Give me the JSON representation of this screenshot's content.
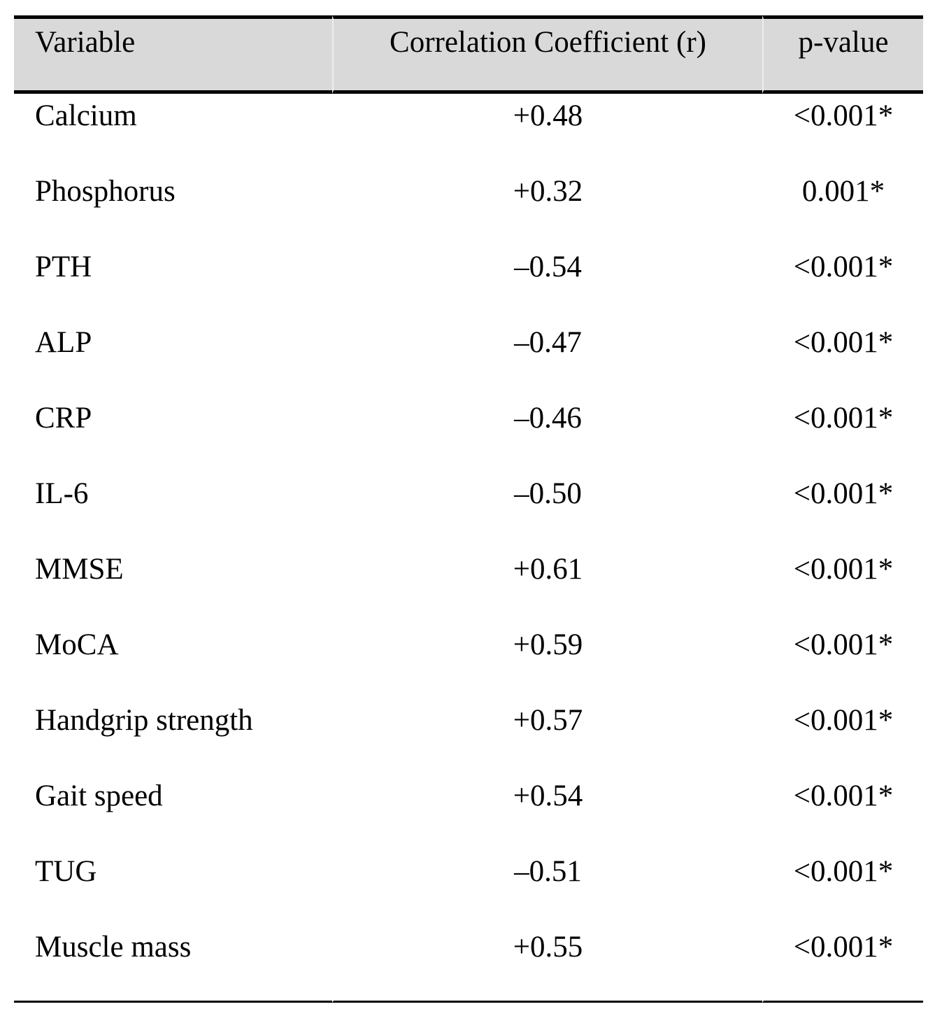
{
  "table": {
    "headers": [
      "Variable",
      "Correlation Coefficient (r)",
      "p-value"
    ],
    "rows": [
      {
        "variable": "Calcium",
        "r": "+0.48",
        "p": "<0.001*"
      },
      {
        "variable": "Phosphorus",
        "r": "+0.32",
        "p": "0.001*"
      },
      {
        "variable": "PTH",
        "r": "–0.54",
        "p": "<0.001*"
      },
      {
        "variable": "ALP",
        "r": "–0.47",
        "p": "<0.001*"
      },
      {
        "variable": "CRP",
        "r": "–0.46",
        "p": "<0.001*"
      },
      {
        "variable": "IL-6",
        "r": "–0.50",
        "p": "<0.001*"
      },
      {
        "variable": "MMSE",
        "r": "+0.61",
        "p": "<0.001*"
      },
      {
        "variable": "MoCA",
        "r": "+0.59",
        "p": "<0.001*"
      },
      {
        "variable": "Handgrip strength",
        "r": "+0.57",
        "p": "<0.001*"
      },
      {
        "variable": "Gait speed",
        "r": "+0.54",
        "p": "<0.001*"
      },
      {
        "variable": "TUG",
        "r": "–0.51",
        "p": "<0.001*"
      },
      {
        "variable": "Muscle mass",
        "r": "+0.55",
        "p": "<0.001*"
      }
    ]
  },
  "colors": {
    "header_bg": "#d9d9d9",
    "rule": "#000000",
    "text": "#000000"
  }
}
